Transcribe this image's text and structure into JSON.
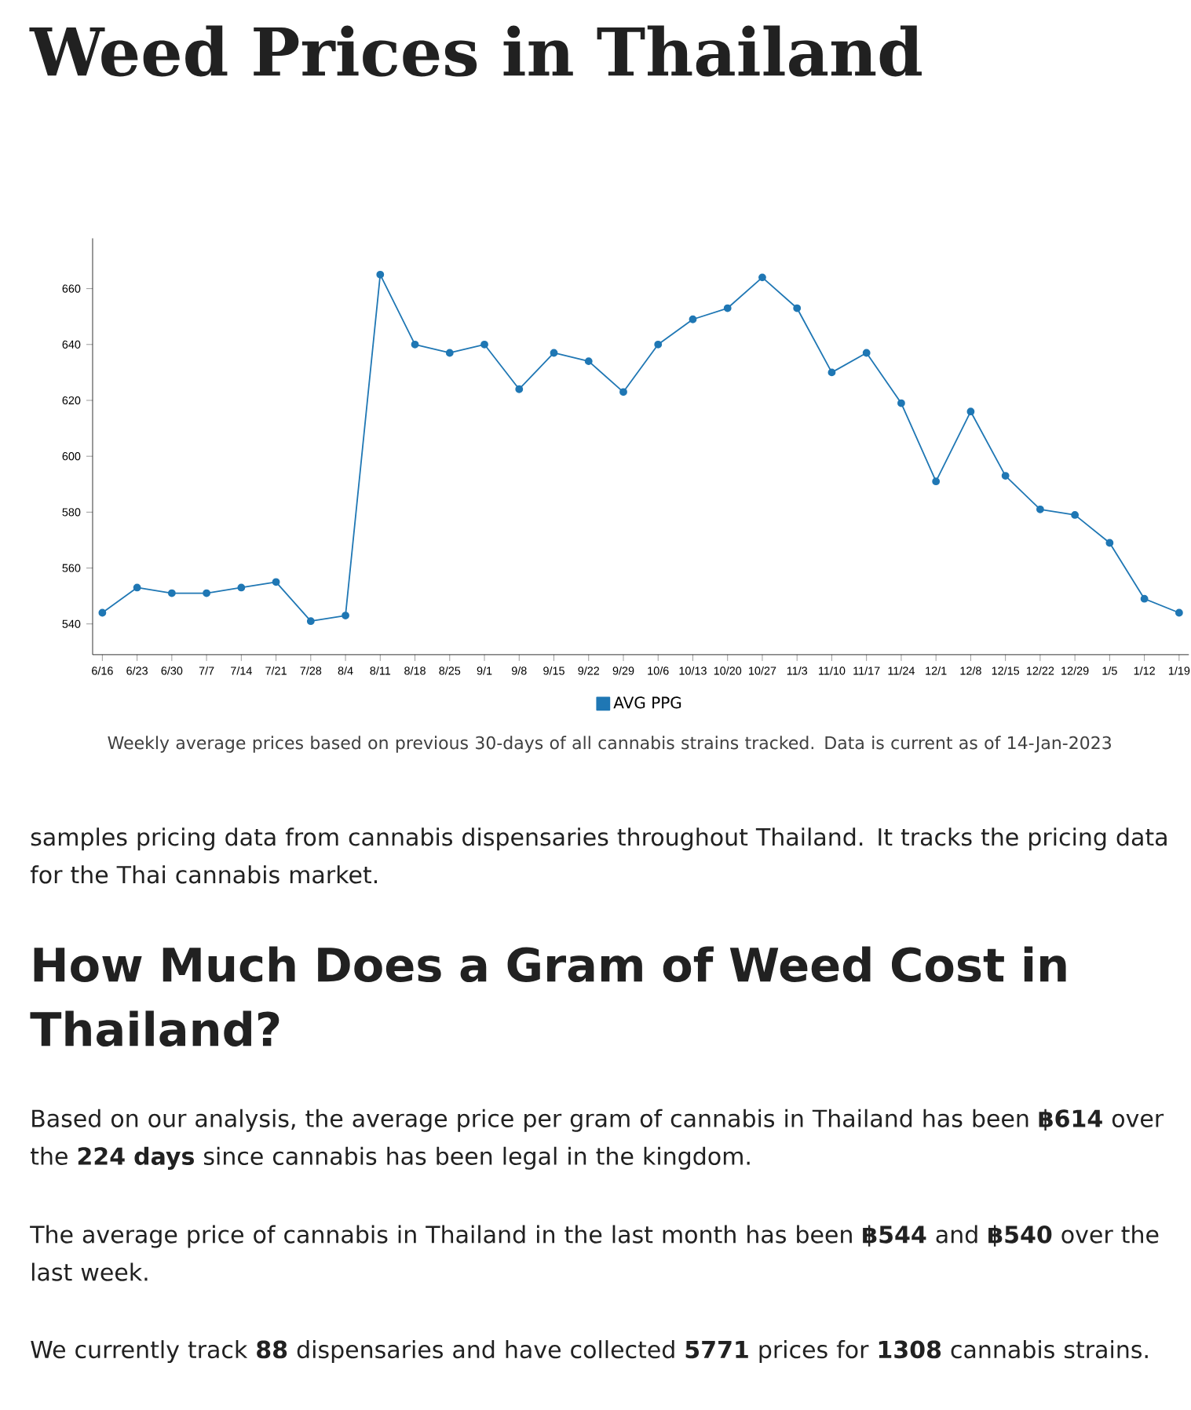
{
  "chart_data": {
    "type": "line",
    "title": "Weed Prices in Thailand",
    "categories": [
      "6/16",
      "6/23",
      "6/30",
      "7/7",
      "7/14",
      "7/21",
      "7/28",
      "8/4",
      "8/11",
      "8/18",
      "8/25",
      "9/1",
      "9/8",
      "9/15",
      "9/22",
      "9/29",
      "10/6",
      "10/13",
      "10/20",
      "10/27",
      "11/3",
      "11/10",
      "11/17",
      "11/24",
      "12/1",
      "12/8",
      "12/15",
      "12/22",
      "12/29",
      "1/5",
      "1/12",
      "1/19"
    ],
    "series": [
      {
        "name": "AVG PPG",
        "color": "#1f77b4",
        "values": [
          544,
          553,
          551,
          551,
          553,
          555,
          541,
          543,
          665,
          640,
          637,
          640,
          624,
          637,
          634,
          623,
          640,
          649,
          653,
          664,
          653,
          630,
          637,
          619,
          591,
          616,
          593,
          581,
          579,
          569,
          549,
          544
        ]
      }
    ],
    "ylim": [
      529,
      678
    ],
    "yticks": [
      540,
      560,
      580,
      600,
      620,
      640,
      660
    ],
    "marker": "circle",
    "legend": "bottom",
    "annotations": [
      "Weekly average prices based on previous 30-days of all cannabis strains tracked. Data is current as of 14-Jan-2023",
      "samples pricing data from cannabis dispensaries throughout Thailand. It tracks the pricing data for the Thai cannabis market.",
      "How Much Does a Gram of Weed Cost in Thailand?",
      "Based on our analysis, the average price per gram of cannabis in Thailand has been **฿614** over the **224 days** since cannabis has been legal in the kingdom.",
      "The average price of cannabis in Thailand in the last month has been **฿544** and **฿540** over the last week.",
      "We currently track **88** dispensaries and have collected **5771** prices for **1308** cannabis strains."
    ]
  }
}
